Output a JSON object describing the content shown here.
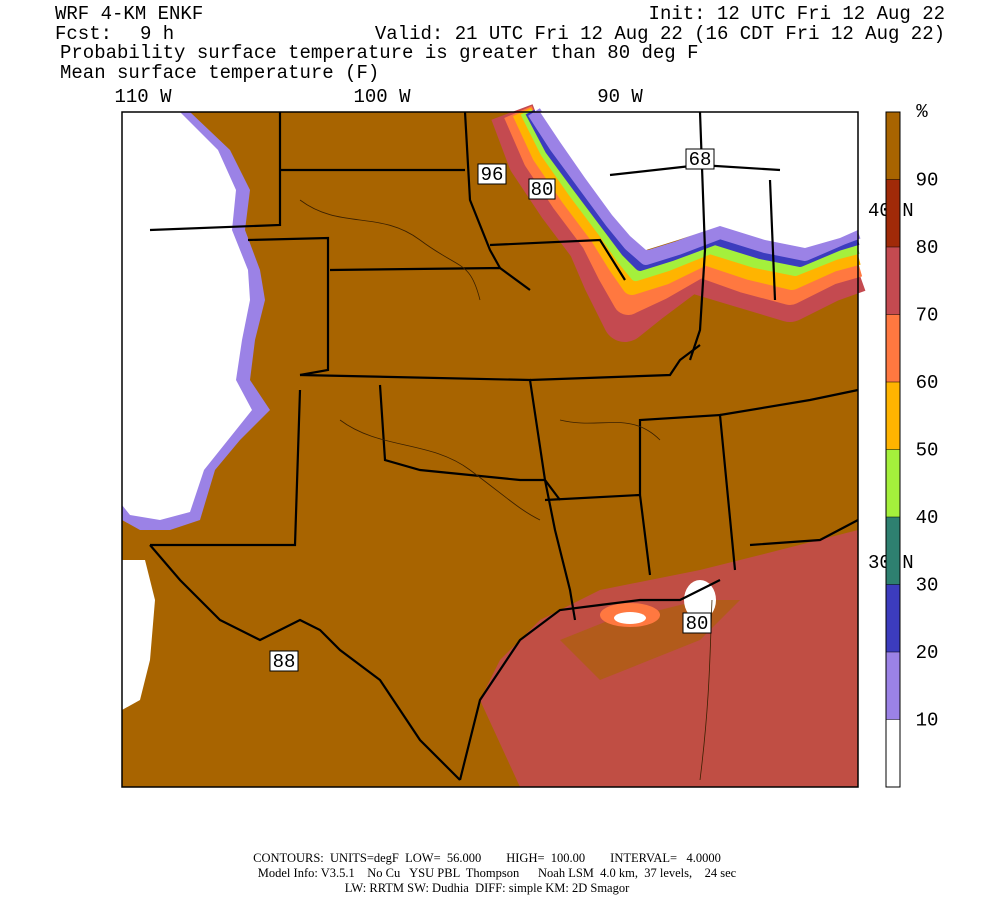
{
  "header": {
    "model": "WRF 4-KM ENKF",
    "init": "Init: 12 UTC Fri 12 Aug 22",
    "fcst_label": "Fcst:",
    "fcst_value": "9 h",
    "valid": "Valid: 21 UTC Fri 12 Aug 22 (16 CDT Fri 12 Aug 22)",
    "field_1": "Probability surface temperature is greater than 80 deg F",
    "field_2": "Mean surface temperature (F)"
  },
  "map": {
    "lon_labels": [
      "110 W",
      "100 W",
      "90 W"
    ],
    "lat_labels": [
      "40 N",
      "30 N"
    ],
    "contour_labels": [
      "96",
      "80",
      "68",
      "88",
      "80"
    ]
  },
  "colorbar": {
    "unit": "%",
    "range": [
      0,
      100
    ],
    "levels": [
      10,
      20,
      30,
      40,
      50,
      60,
      70,
      80,
      90
    ],
    "colors": [
      "#ffffff",
      "#9b82e6",
      "#3c3cbe",
      "#2e8070",
      "#a4f03c",
      "#ffb400",
      "#ff7840",
      "#c44a50",
      "#a02a08",
      "#a86400"
    ]
  },
  "footer": {
    "contours": "CONTOURS:  UNITS=degF  LOW=  56.000        HIGH=  100.00        INTERVAL=   4.0000",
    "model_info": "Model Info: V3.5.1    No Cu   YSU PBL  Thompson      Noah LSM  4.0 km,  37 levels,    24 sec",
    "physics": "LW: RRTM SW: Dudhia  DIFF: simple KM: 2D Smagor"
  }
}
